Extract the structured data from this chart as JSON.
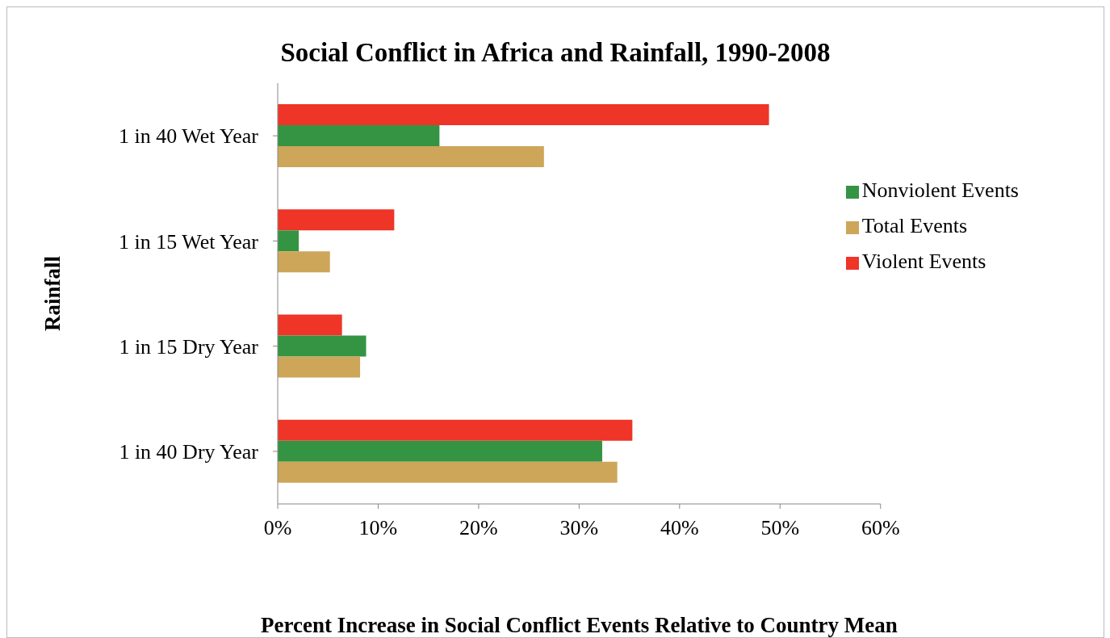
{
  "chart_data": {
    "type": "bar",
    "orientation": "horizontal",
    "title": "Social Conflict in Africa and Rainfall, 1990-2008",
    "xlabel": "Percent Increase in Social Conflict Events Relative to Country Mean",
    "ylabel": "Rainfall",
    "categories": [
      "1 in 40 Wet Year",
      "1 in 15 Wet Year",
      "1 in 15 Dry Year",
      "1 in 40 Dry Year"
    ],
    "series": [
      {
        "name": "Violent Events",
        "color": "#ee3527",
        "values": [
          48.9,
          11.6,
          6.4,
          35.3
        ]
      },
      {
        "name": "Nonviolent Events",
        "color": "#349443",
        "values": [
          16.1,
          2.1,
          8.8,
          32.3
        ]
      },
      {
        "name": "Total Events",
        "color": "#cda65a",
        "values": [
          26.5,
          5.2,
          8.2,
          33.8
        ]
      }
    ],
    "xlim": [
      0,
      60
    ],
    "xticks": [
      {
        "value": 0,
        "label": "0%"
      },
      {
        "value": 10,
        "label": "10%"
      },
      {
        "value": 20,
        "label": "20%"
      },
      {
        "value": 30,
        "label": "30%"
      },
      {
        "value": 40,
        "label": "40%"
      },
      {
        "value": 50,
        "label": "50%"
      },
      {
        "value": 60,
        "label": "60%"
      }
    ],
    "grid": false,
    "legend": "right"
  }
}
